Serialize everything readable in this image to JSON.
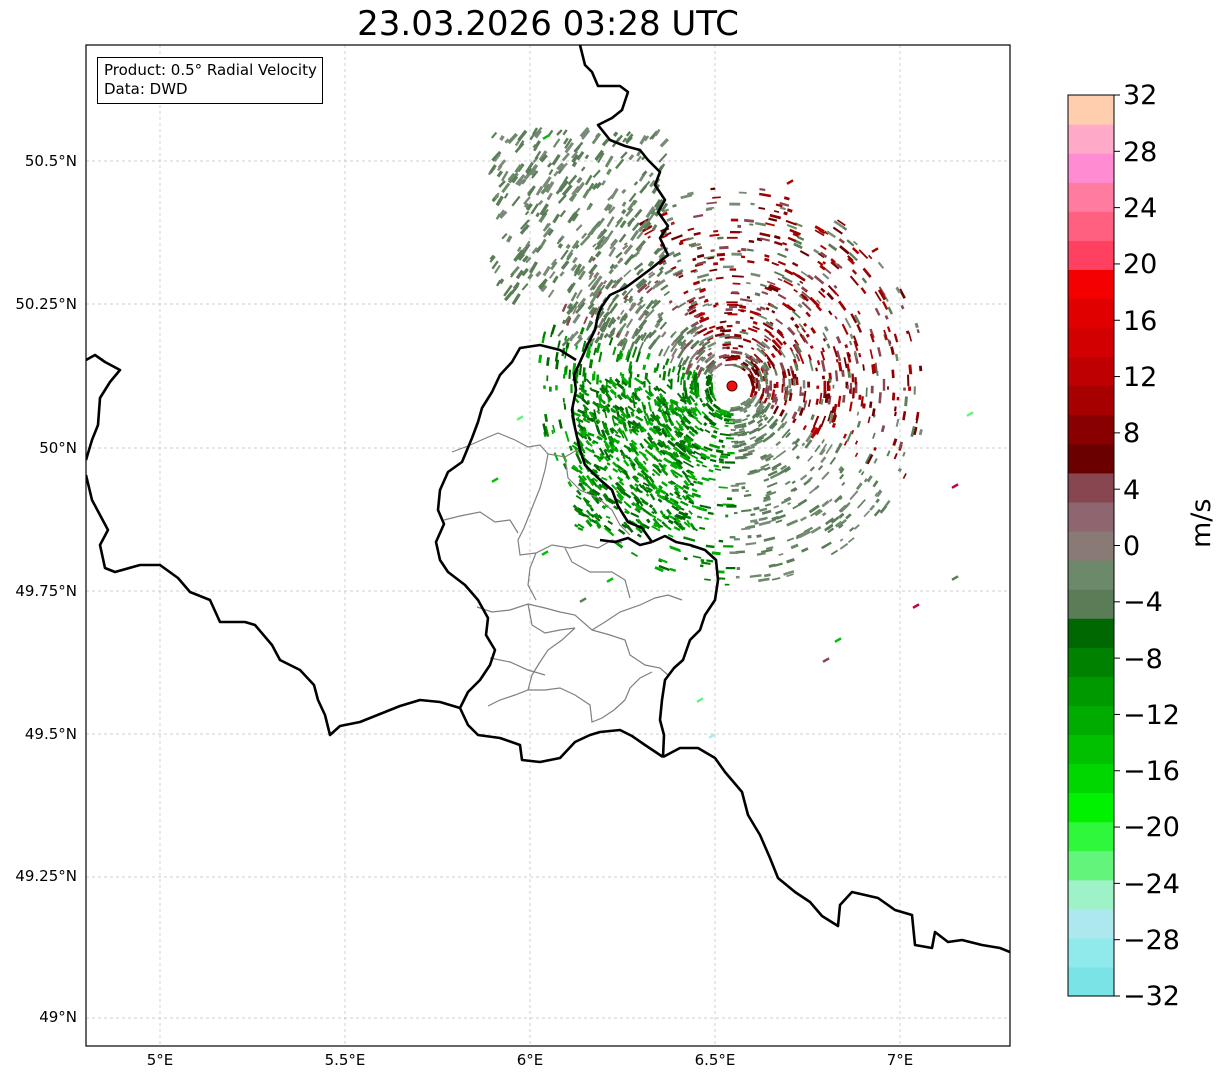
{
  "title": "23.03.2026 03:28 UTC",
  "info_box": {
    "product": "Product: 0.5° Radial Velocity",
    "data": "Data: DWD"
  },
  "axes": {
    "lat_labels": [
      "50.5°N",
      "50.25°N",
      "50°N",
      "49.75°N",
      "49.5°N",
      "49.25°N",
      "49°N"
    ],
    "lon_labels": [
      "5°E",
      "5.5°E",
      "6°E",
      "6.5°E",
      "7°E"
    ]
  },
  "colorbar": {
    "unit": "m/s",
    "tick_labels": [
      "32",
      "28",
      "24",
      "20",
      "16",
      "12",
      "8",
      "4",
      "0",
      "−4",
      "−8",
      "−12",
      "−16",
      "−20",
      "−24",
      "−28",
      "−32"
    ],
    "colors_low_to_high": [
      "#79e3e6",
      "#90eaec",
      "#ade8ee",
      "#9ff2c8",
      "#63f57b",
      "#2ff83c",
      "#00f200",
      "#00d600",
      "#00c000",
      "#00ac00",
      "#009a00",
      "#008200",
      "#006800",
      "#5a7d58",
      "#6c8a6a",
      "#8a7a76",
      "#8f6670",
      "#884650",
      "#6a0000",
      "#880000",
      "#a60000",
      "#be0000",
      "#d20000",
      "#e00000",
      "#f40000",
      "#ff4060",
      "#ff6080",
      "#ff7ca0",
      "#ff8cd2",
      "#ffaac8",
      "#ffceae"
    ]
  },
  "radar_site": {
    "lon": 6.547,
    "lat": 50.109,
    "color": "#ee1111"
  },
  "map_colors": {
    "country_border": "#000000",
    "region_border": "#808080",
    "grid": "#c0c0c0"
  }
}
